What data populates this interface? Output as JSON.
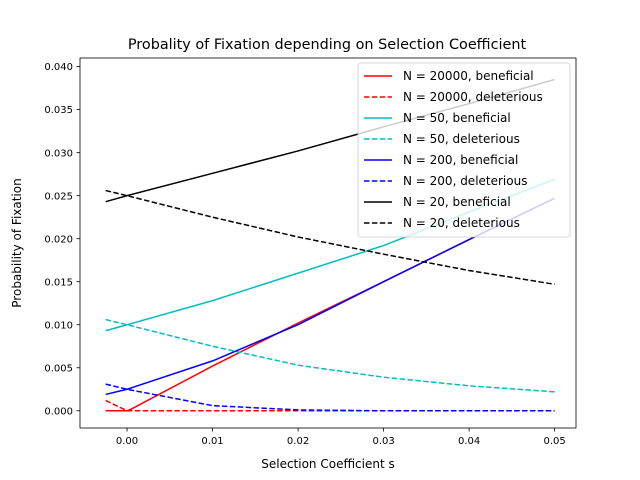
{
  "chart_data": {
    "type": "line",
    "title": "Probality of Fixation depending on Selection Coefficient",
    "xlabel": "Selection Coefficient s",
    "ylabel": "Probability of Fixation",
    "xlim": [
      -0.0055,
      0.0525
    ],
    "ylim": [
      -0.002,
      0.041
    ],
    "xticks": [
      0.0,
      0.01,
      0.02,
      0.03,
      0.04,
      0.05
    ],
    "xtick_labels": [
      "0.00",
      "0.01",
      "0.02",
      "0.03",
      "0.04",
      "0.05"
    ],
    "yticks": [
      0.0,
      0.005,
      0.01,
      0.015,
      0.02,
      0.025,
      0.03,
      0.035,
      0.04
    ],
    "ytick_labels": [
      "0.000",
      "0.005",
      "0.010",
      "0.015",
      "0.020",
      "0.025",
      "0.030",
      "0.035",
      "0.040"
    ],
    "grid": false,
    "legend_position": "top-right",
    "series": [
      {
        "name": "N = 20000, beneficial",
        "color": "#ff0000",
        "style": "solid",
        "x": [
          -0.0025,
          0.0,
          0.0005,
          0.01,
          0.02,
          0.03,
          0.04,
          0.05
        ],
        "y": [
          0.0,
          0.0,
          0.0002,
          0.0052,
          0.0102,
          0.015,
          0.0199,
          0.0247
        ]
      },
      {
        "name": "N = 20000, deleterious",
        "color": "#ff0000",
        "style": "dashed",
        "x": [
          -0.0025,
          0.0,
          0.0005,
          0.01,
          0.02,
          0.03,
          0.04,
          0.05
        ],
        "y": [
          0.0012,
          0.0,
          0.0,
          0.0,
          0.0,
          0.0,
          0.0,
          0.0
        ]
      },
      {
        "name": "N = 50, beneficial",
        "color": "#00bfbf",
        "style": "solid",
        "x": [
          -0.0025,
          0.0,
          0.01,
          0.02,
          0.03,
          0.04,
          0.05
        ],
        "y": [
          0.0093,
          0.01,
          0.0128,
          0.016,
          0.0192,
          0.0231,
          0.0269
        ]
      },
      {
        "name": "N = 50, deleterious",
        "color": "#00bfbf",
        "style": "dashed",
        "x": [
          -0.0025,
          0.0,
          0.01,
          0.02,
          0.03,
          0.04,
          0.05
        ],
        "y": [
          0.0106,
          0.01,
          0.0075,
          0.0053,
          0.0039,
          0.0029,
          0.0022
        ]
      },
      {
        "name": "N = 200, beneficial",
        "color": "#0000ff",
        "style": "solid",
        "x": [
          -0.0025,
          0.0,
          0.01,
          0.02,
          0.03,
          0.04,
          0.05
        ],
        "y": [
          0.0019,
          0.0025,
          0.0058,
          0.01,
          0.015,
          0.0199,
          0.0247
        ]
      },
      {
        "name": "N = 200, deleterious",
        "color": "#0000ff",
        "style": "dashed",
        "x": [
          -0.0025,
          0.0,
          0.01,
          0.02,
          0.03,
          0.04,
          0.05
        ],
        "y": [
          0.0031,
          0.0025,
          0.0006,
          0.0001,
          0.0,
          0.0,
          0.0
        ]
      },
      {
        "name": "N = 20, beneficial",
        "color": "#000000",
        "style": "solid",
        "x": [
          -0.0025,
          0.0,
          0.01,
          0.02,
          0.03,
          0.04,
          0.05
        ],
        "y": [
          0.0243,
          0.025,
          0.0276,
          0.0302,
          0.033,
          0.0357,
          0.0385
        ]
      },
      {
        "name": "N = 20, deleterious",
        "color": "#000000",
        "style": "dashed",
        "x": [
          -0.0025,
          0.0,
          0.01,
          0.02,
          0.03,
          0.04,
          0.05
        ],
        "y": [
          0.0256,
          0.025,
          0.0225,
          0.0202,
          0.0182,
          0.0163,
          0.0147
        ]
      }
    ]
  }
}
